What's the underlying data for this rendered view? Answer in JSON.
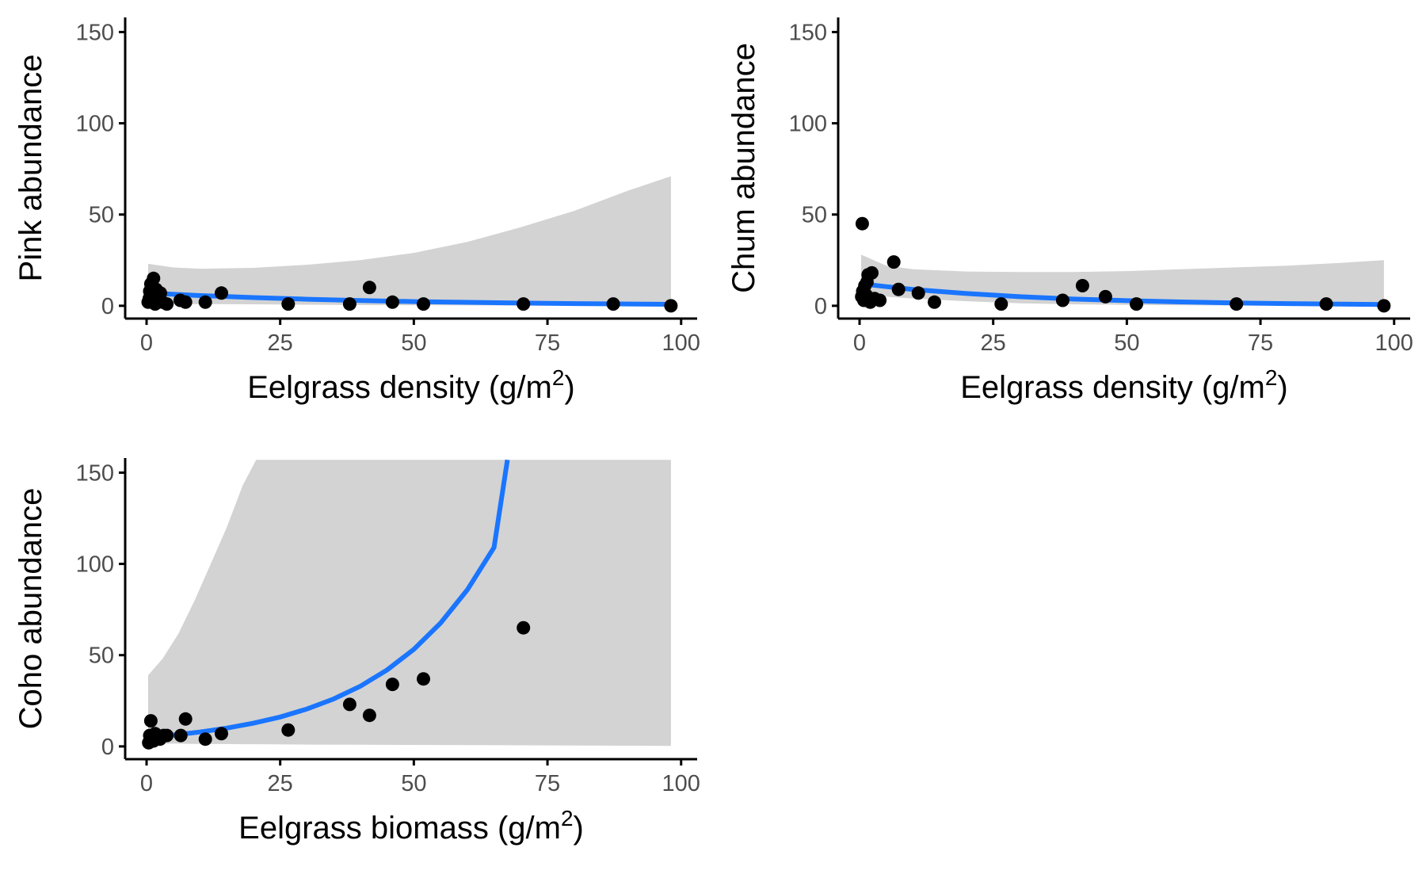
{
  "colors": {
    "fit_line": "#1a75ff",
    "ribbon": "#d3d3d3",
    "point": "#000000",
    "axis": "#000000",
    "tick_text": "#4d4d4d"
  },
  "chart_data": [
    {
      "type": "scatter",
      "id": "pink",
      "xlabel": "Eelgrass density (g/m",
      "xlabel_sup": "2",
      "xlabel_end": ")",
      "ylabel": "Pink abundance",
      "xlim": [
        -4,
        103
      ],
      "ylim": [
        -7,
        158
      ],
      "x_ticks": [
        0,
        25,
        50,
        75,
        100
      ],
      "x_tick_labels": [
        "0",
        "25",
        "50",
        "75",
        "100"
      ],
      "y_ticks": [
        0,
        50,
        100,
        150
      ],
      "y_tick_labels": [
        "0",
        "50",
        "100",
        "150"
      ],
      "grid": false,
      "points": [
        {
          "x": 0.3,
          "y": 2
        },
        {
          "x": 0.5,
          "y": 4
        },
        {
          "x": 0.6,
          "y": 8
        },
        {
          "x": 0.8,
          "y": 12
        },
        {
          "x": 1.0,
          "y": 3
        },
        {
          "x": 1.2,
          "y": 6
        },
        {
          "x": 1.3,
          "y": 15
        },
        {
          "x": 1.6,
          "y": 1
        },
        {
          "x": 1.8,
          "y": 9
        },
        {
          "x": 2.2,
          "y": 3
        },
        {
          "x": 2.6,
          "y": 7
        },
        {
          "x": 3.0,
          "y": 2
        },
        {
          "x": 3.8,
          "y": 1
        },
        {
          "x": 6.3,
          "y": 3
        },
        {
          "x": 7.3,
          "y": 2
        },
        {
          "x": 11,
          "y": 2
        },
        {
          "x": 14,
          "y": 7
        },
        {
          "x": 26.5,
          "y": 1
        },
        {
          "x": 38,
          "y": 1
        },
        {
          "x": 41.7,
          "y": 10
        },
        {
          "x": 46,
          "y": 2
        },
        {
          "x": 51.8,
          "y": 1
        },
        {
          "x": 70.5,
          "y": 1
        },
        {
          "x": 87.3,
          "y": 1
        },
        {
          "x": 98.1,
          "y": 0
        }
      ],
      "fit": {
        "x": [
          0.3,
          10,
          20,
          30,
          40,
          50,
          60,
          70,
          80,
          90,
          98.1
        ],
        "y": [
          7.0,
          5.6,
          4.5,
          3.6,
          2.9,
          2.3,
          1.9,
          1.5,
          1.2,
          1.0,
          0.8
        ]
      },
      "ribbon": {
        "x": [
          0.3,
          5,
          10,
          20,
          30,
          40,
          50,
          60,
          70,
          80,
          90,
          98.1
        ],
        "lower": [
          1.0,
          1.0,
          0.9,
          0.8,
          0.6,
          0.4,
          0.3,
          0.2,
          0.1,
          0.05,
          0.02,
          0.0
        ],
        "upper": [
          23,
          21,
          20.3,
          20.8,
          22.5,
          25,
          29,
          35,
          43,
          52,
          63,
          71
        ]
      }
    },
    {
      "type": "scatter",
      "id": "chum",
      "xlabel": "Eelgrass density (g/m",
      "xlabel_sup": "2",
      "xlabel_end": ")",
      "ylabel": "Chum abundance",
      "xlim": [
        -4,
        103
      ],
      "ylim": [
        -7,
        158
      ],
      "x_ticks": [
        0,
        25,
        50,
        75,
        100
      ],
      "x_tick_labels": [
        "0",
        "25",
        "50",
        "75",
        "100"
      ],
      "y_ticks": [
        0,
        50,
        100,
        150
      ],
      "y_tick_labels": [
        "0",
        "50",
        "100",
        "150"
      ],
      "grid": false,
      "points": [
        {
          "x": 0.5,
          "y": 45
        },
        {
          "x": 0.4,
          "y": 5
        },
        {
          "x": 0.6,
          "y": 8
        },
        {
          "x": 0.8,
          "y": 3
        },
        {
          "x": 1.0,
          "y": 11
        },
        {
          "x": 1.2,
          "y": 6
        },
        {
          "x": 1.4,
          "y": 13
        },
        {
          "x": 1.6,
          "y": 17
        },
        {
          "x": 2.0,
          "y": 2
        },
        {
          "x": 2.3,
          "y": 18
        },
        {
          "x": 2.8,
          "y": 4
        },
        {
          "x": 3.8,
          "y": 3
        },
        {
          "x": 6.4,
          "y": 24
        },
        {
          "x": 7.3,
          "y": 9
        },
        {
          "x": 11,
          "y": 7
        },
        {
          "x": 14,
          "y": 2
        },
        {
          "x": 26.5,
          "y": 1
        },
        {
          "x": 38,
          "y": 3
        },
        {
          "x": 41.7,
          "y": 11
        },
        {
          "x": 46,
          "y": 5
        },
        {
          "x": 51.8,
          "y": 1
        },
        {
          "x": 70.5,
          "y": 1
        },
        {
          "x": 87.3,
          "y": 1
        },
        {
          "x": 98.1,
          "y": 0
        }
      ],
      "fit": {
        "x": [
          0.3,
          5,
          10,
          20,
          30,
          40,
          50,
          60,
          70,
          80,
          90,
          98.1
        ],
        "y": [
          12,
          10.5,
          9,
          6.7,
          5.0,
          3.7,
          2.8,
          2.1,
          1.6,
          1.2,
          0.9,
          0.7
        ]
      },
      "ribbon": {
        "x": [
          0.3,
          5,
          10,
          20,
          30,
          40,
          50,
          60,
          70,
          80,
          90,
          98.1
        ],
        "lower": [
          6,
          5,
          4,
          2.5,
          1.4,
          0.8,
          0.5,
          0.3,
          0.15,
          0.08,
          0.04,
          0.02
        ],
        "upper": [
          28,
          22,
          20,
          18.8,
          18.5,
          18.5,
          19,
          20,
          21,
          22,
          23.5,
          25
        ]
      }
    },
    {
      "type": "scatter",
      "id": "coho",
      "xlabel": "Eelgrass biomass (g/m",
      "xlabel_sup": "2",
      "xlabel_end": ")",
      "ylabel": "Coho abundance",
      "xlim": [
        -4,
        103
      ],
      "ylim": [
        -7,
        158
      ],
      "x_ticks": [
        0,
        25,
        50,
        75,
        100
      ],
      "x_tick_labels": [
        "0",
        "25",
        "50",
        "75",
        "100"
      ],
      "y_ticks": [
        0,
        50,
        100,
        150
      ],
      "y_tick_labels": [
        "0",
        "50",
        "100",
        "150"
      ],
      "grid": false,
      "points": [
        {
          "x": 0.4,
          "y": 2
        },
        {
          "x": 0.6,
          "y": 6
        },
        {
          "x": 0.8,
          "y": 14
        },
        {
          "x": 1.0,
          "y": 4
        },
        {
          "x": 1.3,
          "y": 3
        },
        {
          "x": 1.6,
          "y": 7
        },
        {
          "x": 2.0,
          "y": 5
        },
        {
          "x": 2.5,
          "y": 4
        },
        {
          "x": 3.2,
          "y": 6
        },
        {
          "x": 3.8,
          "y": 6
        },
        {
          "x": 6.4,
          "y": 6
        },
        {
          "x": 7.3,
          "y": 15
        },
        {
          "x": 11,
          "y": 4
        },
        {
          "x": 14,
          "y": 7
        },
        {
          "x": 26.5,
          "y": 9
        },
        {
          "x": 38,
          "y": 23
        },
        {
          "x": 41.7,
          "y": 17
        },
        {
          "x": 46,
          "y": 34
        },
        {
          "x": 51.8,
          "y": 37
        },
        {
          "x": 70.5,
          "y": 65
        }
      ],
      "fit": {
        "x": [
          0.3,
          5,
          10,
          15,
          20,
          25,
          30,
          35,
          40,
          45,
          50,
          55,
          60,
          65,
          67.5
        ],
        "y": [
          5.0,
          6.2,
          7.9,
          10.0,
          12.7,
          16.1,
          20.5,
          26.0,
          33.0,
          41.9,
          53.2,
          67.6,
          85.8,
          109,
          157
        ]
      },
      "ribbon": {
        "x": [
          0.3,
          3,
          6,
          9,
          12,
          15,
          18,
          20.5,
          30,
          40,
          50,
          60,
          70,
          80,
          90,
          98.1
        ],
        "lower": [
          1.5,
          1.5,
          1.5,
          1.4,
          1.3,
          1.3,
          1.2,
          1.2,
          1.0,
          0.9,
          0.8,
          0.7,
          0.6,
          0.5,
          0.4,
          0.3
        ],
        "upper": [
          39,
          48,
          62,
          80,
          100,
          120,
          143,
          157,
          157,
          157,
          157,
          157,
          157,
          157,
          157,
          157
        ]
      }
    }
  ]
}
